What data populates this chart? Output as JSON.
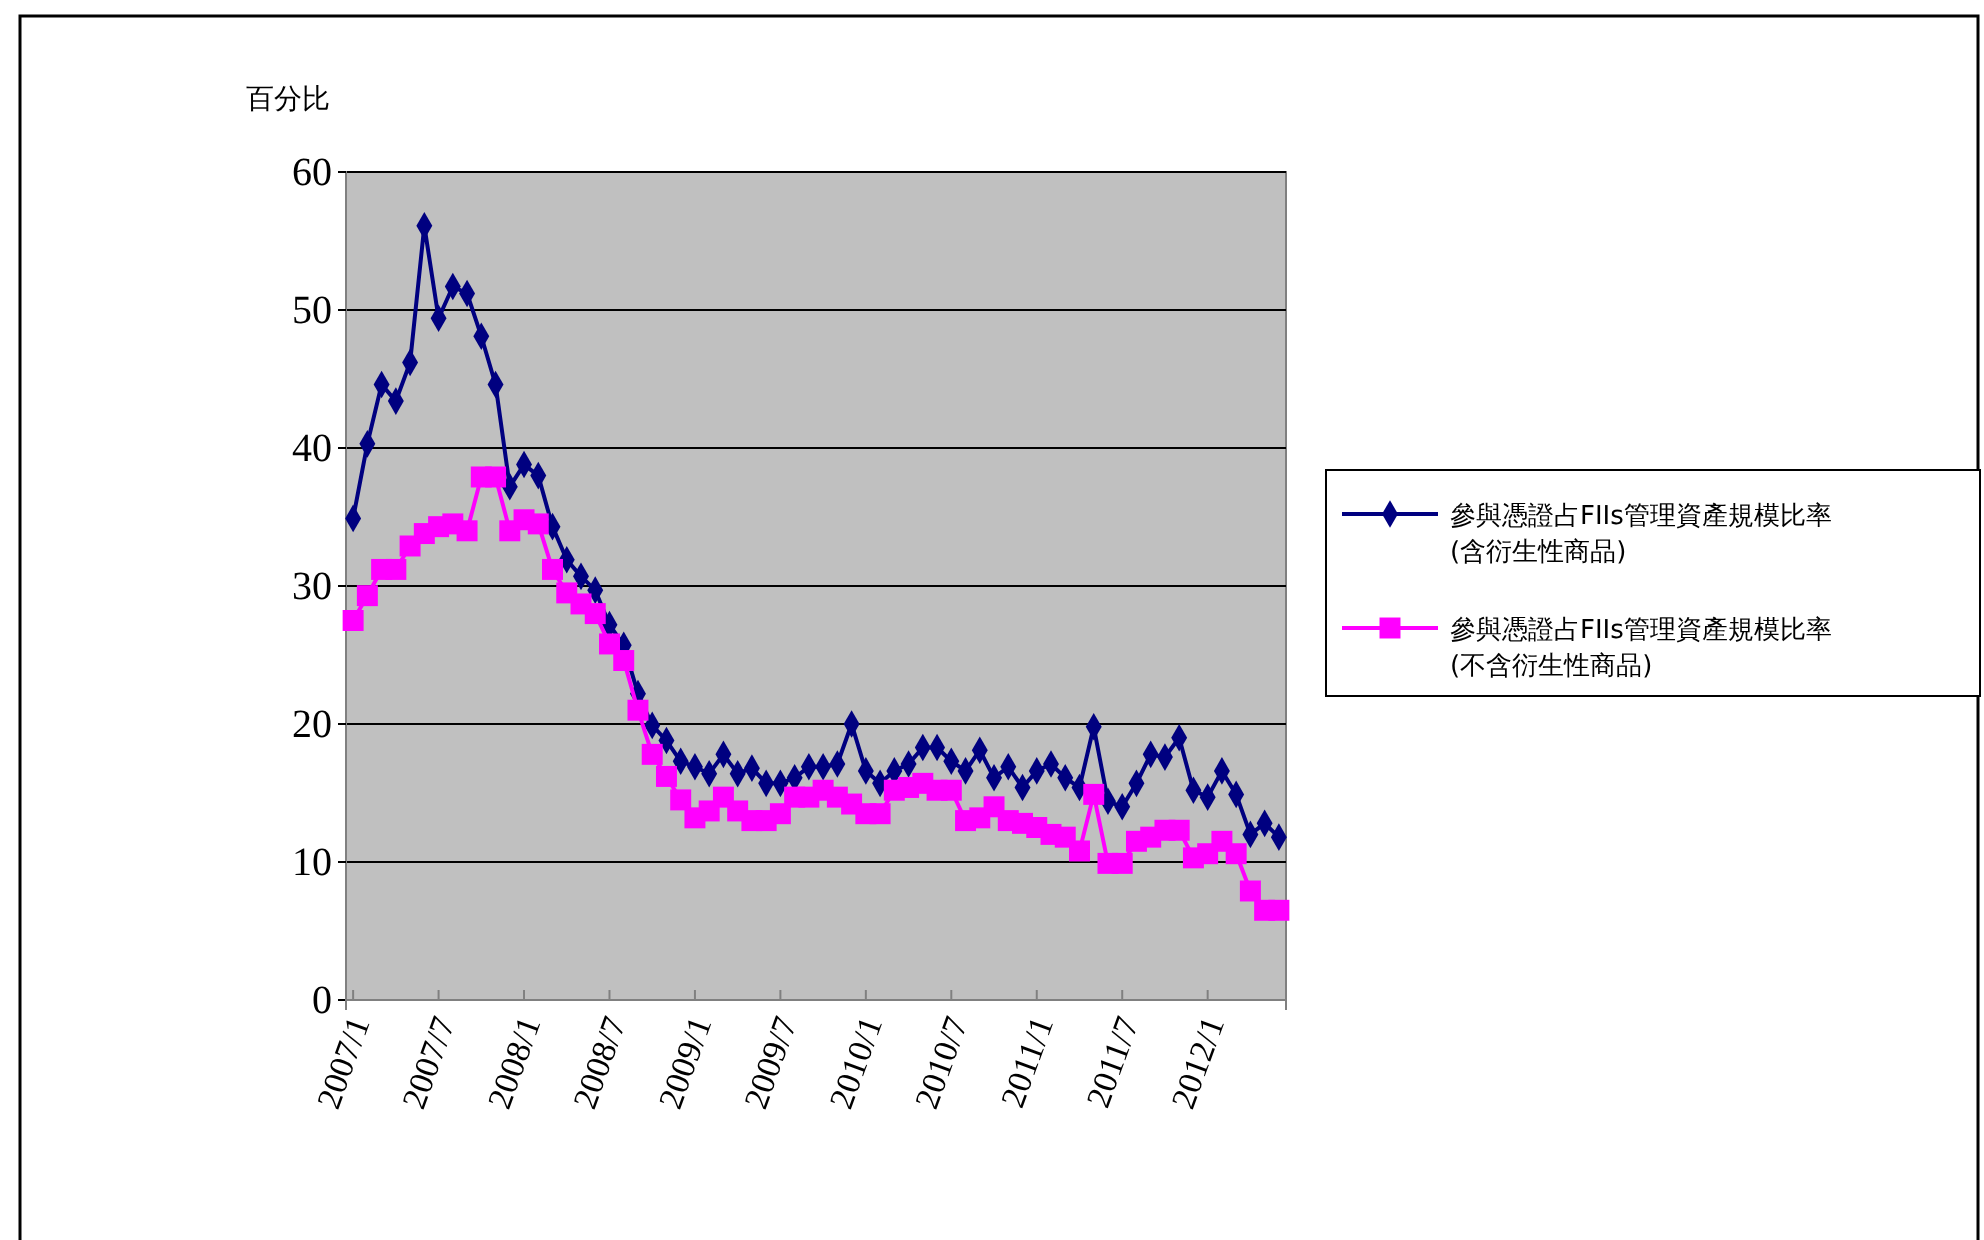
{
  "chart_data": {
    "type": "line",
    "ylabel": "百分比",
    "categories": [
      "2007/1",
      null,
      null,
      null,
      null,
      null,
      "2007/7",
      null,
      null,
      null,
      null,
      null,
      "2008/1",
      null,
      null,
      null,
      null,
      null,
      "2008/7",
      null,
      null,
      null,
      null,
      null,
      "2009/1",
      null,
      null,
      null,
      null,
      null,
      "2009/7",
      null,
      null,
      null,
      null,
      null,
      "2010/1",
      null,
      null,
      null,
      null,
      null,
      "2010/7",
      null,
      null,
      null,
      null,
      null,
      "2011/1",
      null,
      null,
      null,
      null,
      null,
      "2011/7",
      null,
      null,
      null,
      null,
      null,
      "2012/1",
      null,
      null,
      null,
      null,
      null
    ],
    "series": [
      {
        "name": "參與憑證占FIIs管理資產規模比率\n(含衍生性商品)",
        "color": "#000080",
        "marker": "diamond",
        "values": [
          34.9,
          40.3,
          44.6,
          43.4,
          46.2,
          56.1,
          49.4,
          51.7,
          51.2,
          48.1,
          44.6,
          37.2,
          38.8,
          38.0,
          34.3,
          31.9,
          30.7,
          29.7,
          27.2,
          25.7,
          22.2,
          19.9,
          18.8,
          17.3,
          16.9,
          16.4,
          17.8,
          16.4,
          16.8,
          15.7,
          15.7,
          16.1,
          16.9,
          16.9,
          17.1,
          20.0,
          16.6,
          15.7,
          16.6,
          17.1,
          18.3,
          18.3,
          17.3,
          16.6,
          18.1,
          16.1,
          16.9,
          15.4,
          16.6,
          17.1,
          16.1,
          15.4,
          19.8,
          14.4,
          14.0,
          15.7,
          17.8,
          17.6,
          19.0,
          15.2,
          14.7,
          16.6,
          14.9,
          12.0,
          12.8,
          11.8
        ]
      },
      {
        "name": "參與憑證占FIIs管理資產規模比率\n(不含衍生性商品)",
        "color": "#ff00ff",
        "marker": "square",
        "values": [
          27.5,
          29.3,
          31.2,
          31.2,
          32.9,
          33.8,
          34.3,
          34.5,
          34.0,
          37.9,
          37.9,
          34.0,
          34.8,
          34.5,
          31.2,
          29.5,
          28.7,
          28.0,
          25.8,
          24.6,
          21.0,
          17.8,
          16.2,
          14.5,
          13.2,
          13.7,
          14.7,
          13.7,
          13.0,
          13.0,
          13.5,
          14.7,
          14.7,
          15.2,
          14.7,
          14.2,
          13.5,
          13.5,
          15.2,
          15.4,
          15.7,
          15.2,
          15.2,
          13.0,
          13.2,
          14.0,
          13.0,
          12.8,
          12.5,
          12.0,
          11.8,
          10.8,
          14.9,
          9.9,
          9.9,
          11.5,
          11.8,
          12.3,
          12.3,
          10.3,
          10.6,
          11.5,
          10.6,
          7.9,
          6.5,
          6.5
        ]
      }
    ],
    "ylim": [
      0,
      60
    ],
    "yticks": [
      0,
      10,
      20,
      30,
      40,
      50,
      60
    ],
    "grid": "y",
    "legend": "right",
    "line_style": "solid"
  }
}
